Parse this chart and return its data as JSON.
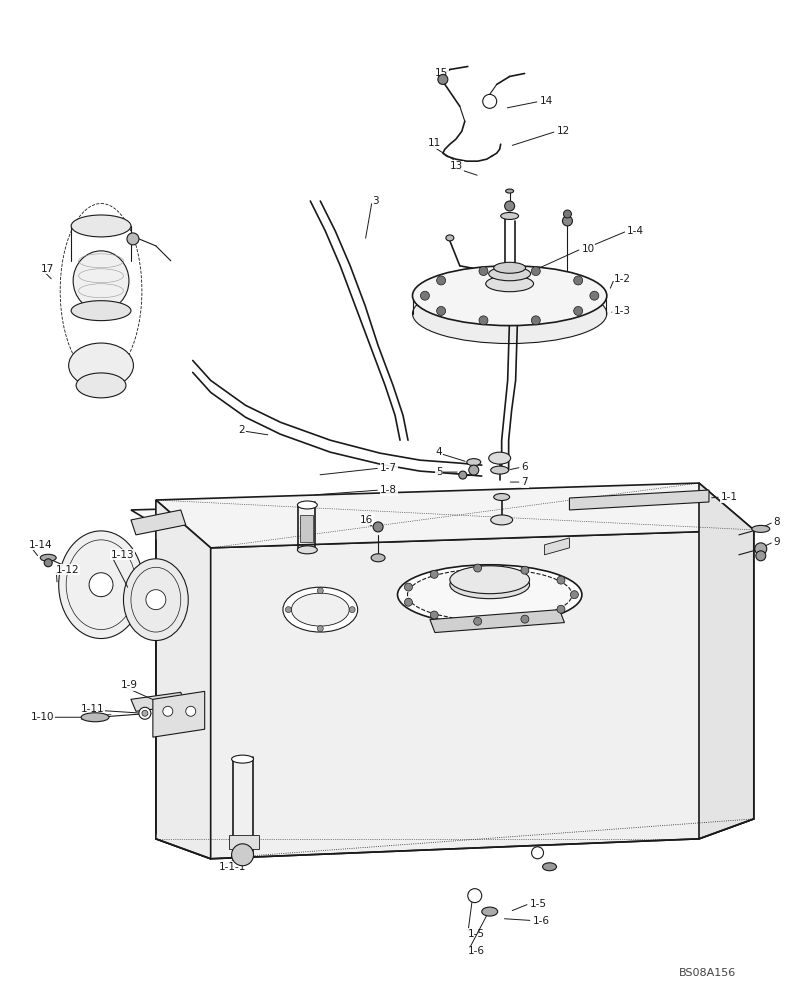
{
  "bg_color": "#ffffff",
  "line_color": "#1a1a1a",
  "watermark": "BS08A156",
  "fig_width": 8.12,
  "fig_height": 10.0,
  "dpi": 100
}
